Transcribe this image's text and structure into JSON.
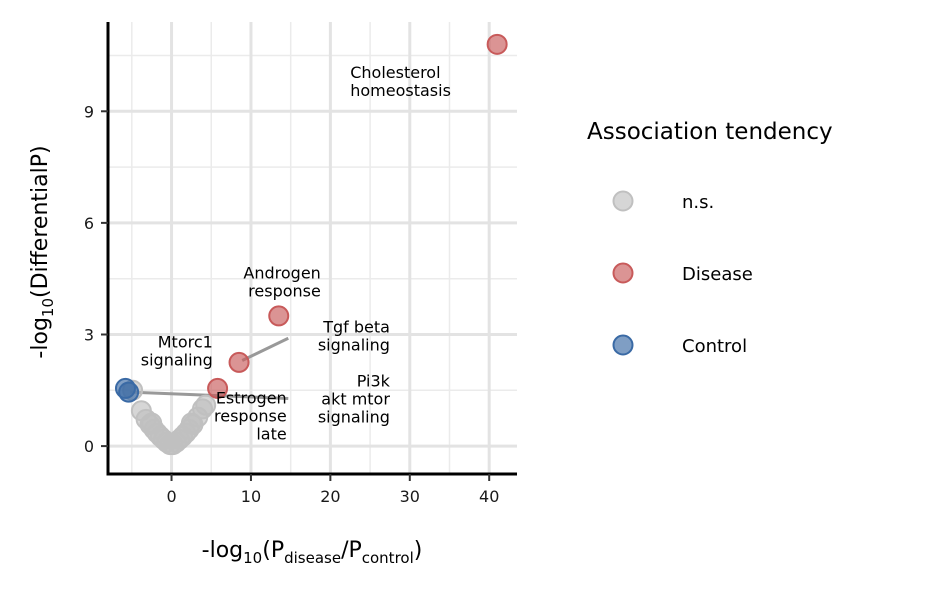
{
  "chart_data": {
    "type": "scatter",
    "xlim": [
      -8,
      43.5
    ],
    "ylim": [
      -0.75,
      11.4
    ],
    "x_ticks": [
      0,
      10,
      20,
      30,
      40
    ],
    "y_ticks": [
      0,
      3,
      6,
      9
    ],
    "x_ticks_minor": [
      -5,
      5,
      15,
      25,
      35
    ],
    "y_ticks_minor": [
      1.5,
      4.5,
      7.5,
      10.5
    ],
    "grid": true,
    "xlabel": {
      "prefix": "-log",
      "base": "10",
      "open": "(P",
      "num_sub": "disease",
      "slash": "/P",
      "den_sub": "control",
      "close": ")"
    },
    "ylabel": {
      "prefix": "-log",
      "base": "10",
      "body": "(DifferentialP)"
    },
    "series": [
      {
        "name": "n.s.",
        "color": "#c0c0c0",
        "points": [
          [
            -4.9,
            1.5
          ],
          [
            -3.8,
            0.95
          ],
          [
            -3.2,
            0.72
          ],
          [
            -2.7,
            0.58
          ],
          [
            -2.2,
            0.45
          ],
          [
            -1.8,
            0.35
          ],
          [
            -1.4,
            0.26
          ],
          [
            -1.0,
            0.18
          ],
          [
            -0.6,
            0.1
          ],
          [
            -0.2,
            0.04
          ],
          [
            0.2,
            0.04
          ],
          [
            0.6,
            0.1
          ],
          [
            1.0,
            0.18
          ],
          [
            1.4,
            0.26
          ],
          [
            1.8,
            0.35
          ],
          [
            2.2,
            0.45
          ],
          [
            2.7,
            0.58
          ],
          [
            3.3,
            0.78
          ],
          [
            3.9,
            1.0
          ],
          [
            4.3,
            1.1
          ],
          [
            -2.5,
            0.62
          ],
          [
            2.5,
            0.62
          ]
        ]
      },
      {
        "name": "Disease",
        "color": "#c85a5a",
        "points": [
          [
            41,
            10.8
          ],
          [
            13.5,
            3.5
          ],
          [
            8.5,
            2.25
          ],
          [
            5.8,
            1.55
          ]
        ]
      },
      {
        "name": "Control",
        "color": "#3a6aa5",
        "points": [
          [
            -5.8,
            1.55
          ],
          [
            -5.4,
            1.45
          ]
        ]
      }
    ],
    "annotations": [
      {
        "lines": [
          "Cholesterol",
          "homeostasis"
        ],
        "x": 22.5,
        "y": 9.9,
        "anchor": "start"
      },
      {
        "lines": [
          "Androgen",
          "response"
        ],
        "x": 18.8,
        "y": 4.5,
        "anchor": "end"
      },
      {
        "lines": [
          "Tgf beta",
          "signaling"
        ],
        "x": 27.5,
        "y": 3.05,
        "anchor": "end"
      },
      {
        "lines": [
          "Mtorc1",
          "signaling"
        ],
        "x": 5.2,
        "y": 2.65,
        "anchor": "end"
      },
      {
        "lines": [
          "Pi3k",
          "akt mtor",
          "signaling"
        ],
        "x": 27.5,
        "y": 1.6,
        "anchor": "end"
      },
      {
        "lines": [
          "Estrogen",
          "response",
          "late"
        ],
        "x": 14.5,
        "y": 1.15,
        "anchor": "end"
      }
    ],
    "connectors": [
      {
        "from": [
          8.9,
          2.3
        ],
        "to": [
          14.7,
          2.9
        ]
      },
      {
        "from": [
          -5.2,
          1.45
        ],
        "to": [
          14.7,
          1.28
        ]
      }
    ],
    "legend": {
      "title": "Association tendency",
      "position": "right",
      "items": [
        {
          "label": "n.s.",
          "color": "#c0c0c0"
        },
        {
          "label": "Disease",
          "color": "#c85a5a"
        },
        {
          "label": "Control",
          "color": "#3a6aa5"
        }
      ]
    }
  }
}
